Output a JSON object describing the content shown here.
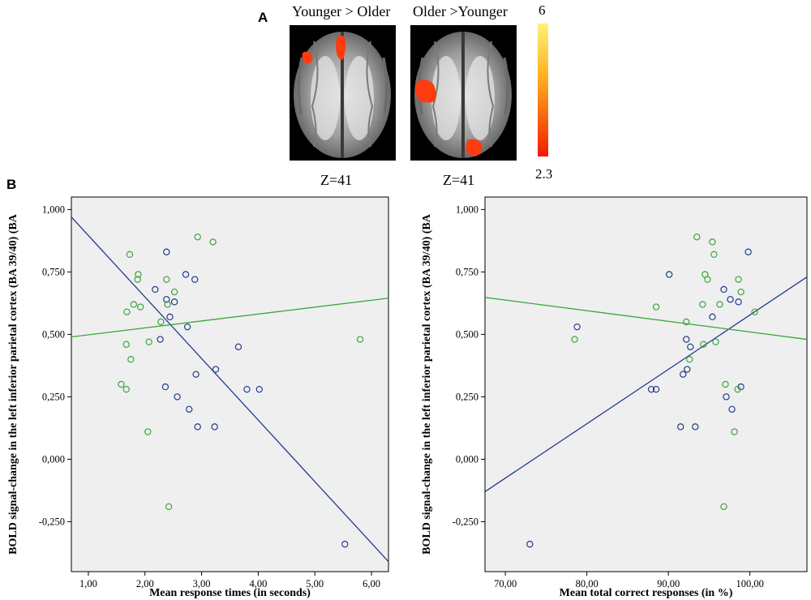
{
  "panel_a_label": "A",
  "panel_b_label": "B",
  "brain_images": [
    {
      "title": "Younger > Older",
      "z_label": "Z=41"
    },
    {
      "title": "Older >Younger",
      "z_label": "Z=41"
    }
  ],
  "colorbar": {
    "max_label": "6",
    "min_label": "2.3",
    "top_color": "#fff176",
    "bottom_color": "#f21c00"
  },
  "colors": {
    "blue_group": "#1f3b8c",
    "green_group": "#3aa63a",
    "plot_bg": "#efefef"
  },
  "chart_data": [
    {
      "type": "scatter",
      "xlabel": "Mean response times (in seconds)",
      "ylabel": "BOLD signal-change in the left inferior parietal cortex (BA 39/40)",
      "xlim": [
        0.7,
        6.3
      ],
      "ylim": [
        -0.45,
        1.05
      ],
      "x_ticks": [
        1,
        2,
        3,
        4,
        5,
        6
      ],
      "x_tick_labels": [
        "1,00",
        "2,00",
        "3,00",
        "4,00",
        "5,00",
        "6,00"
      ],
      "y_ticks": [
        -0.25,
        0,
        0.25,
        0.5,
        0.75,
        1
      ],
      "y_tick_labels": [
        "-0,250",
        "0,000",
        "0,250",
        "0,500",
        "0,750",
        "1,000"
      ],
      "series": [
        {
          "name": "blue",
          "points": [
            [
              2.38,
              0.83
            ],
            [
              2.72,
              0.74
            ],
            [
              2.88,
              0.72
            ],
            [
              2.18,
              0.68
            ],
            [
              2.38,
              0.64
            ],
            [
              2.52,
              0.63
            ],
            [
              2.44,
              0.57
            ],
            [
              2.75,
              0.53
            ],
            [
              2.27,
              0.48
            ],
            [
              3.65,
              0.45
            ],
            [
              3.25,
              0.36
            ],
            [
              2.9,
              0.34
            ],
            [
              2.36,
              0.29
            ],
            [
              2.57,
              0.25
            ],
            [
              2.78,
              0.2
            ],
            [
              3.8,
              0.28
            ],
            [
              4.02,
              0.28
            ],
            [
              2.93,
              0.13
            ],
            [
              3.23,
              0.13
            ],
            [
              5.53,
              -0.34
            ]
          ],
          "fit": [
            [
              0.7,
              0.97
            ],
            [
              6.3,
              -0.41
            ]
          ]
        },
        {
          "name": "green",
          "points": [
            [
              2.93,
              0.89
            ],
            [
              3.2,
              0.87
            ],
            [
              1.73,
              0.82
            ],
            [
              1.88,
              0.74
            ],
            [
              1.87,
              0.72
            ],
            [
              2.38,
              0.72
            ],
            [
              2.52,
              0.67
            ],
            [
              1.8,
              0.62
            ],
            [
              1.92,
              0.61
            ],
            [
              2.4,
              0.62
            ],
            [
              1.68,
              0.59
            ],
            [
              2.28,
              0.55
            ],
            [
              1.67,
              0.46
            ],
            [
              2.07,
              0.47
            ],
            [
              5.8,
              0.48
            ],
            [
              1.75,
              0.4
            ],
            [
              1.58,
              0.3
            ],
            [
              1.67,
              0.28
            ],
            [
              2.05,
              0.11
            ],
            [
              2.42,
              -0.19
            ]
          ],
          "fit": [
            [
              0.7,
              0.49
            ],
            [
              6.3,
              0.645
            ]
          ]
        }
      ]
    },
    {
      "type": "scatter",
      "xlabel": "Mean total correct responses (in %)",
      "ylabel": "BOLD signal-change in the left inferior parietal cortex (BA 39/40)",
      "xlim": [
        67.5,
        107
      ],
      "ylim": [
        -0.45,
        1.05
      ],
      "x_ticks": [
        70,
        80,
        90,
        100
      ],
      "x_tick_labels": [
        "70,00",
        "80,00",
        "90,00",
        "100,00"
      ],
      "y_ticks": [
        -0.25,
        0,
        0.25,
        0.5,
        0.75,
        1
      ],
      "y_tick_labels": [
        "-0,250",
        "0,000",
        "0,250",
        "0,500",
        "0,750",
        "1,000"
      ],
      "series": [
        {
          "name": "blue",
          "points": [
            [
              99.8,
              0.83
            ],
            [
              90.1,
              0.74
            ],
            [
              96.8,
              0.68
            ],
            [
              97.6,
              0.64
            ],
            [
              98.6,
              0.63
            ],
            [
              95.4,
              0.57
            ],
            [
              78.8,
              0.53
            ],
            [
              92.2,
              0.48
            ],
            [
              92.7,
              0.45
            ],
            [
              92.3,
              0.36
            ],
            [
              91.8,
              0.34
            ],
            [
              98.9,
              0.29
            ],
            [
              87.9,
              0.28
            ],
            [
              88.5,
              0.28
            ],
            [
              97.1,
              0.25
            ],
            [
              97.8,
              0.2
            ],
            [
              91.5,
              0.13
            ],
            [
              93.3,
              0.13
            ],
            [
              73.0,
              -0.34
            ]
          ],
          "fit": [
            [
              67.5,
              -0.13
            ],
            [
              107,
              0.73
            ]
          ]
        },
        {
          "name": "green",
          "points": [
            [
              93.5,
              0.89
            ],
            [
              95.4,
              0.87
            ],
            [
              95.6,
              0.82
            ],
            [
              94.5,
              0.74
            ],
            [
              98.6,
              0.72
            ],
            [
              94.8,
              0.72
            ],
            [
              98.9,
              0.67
            ],
            [
              96.3,
              0.62
            ],
            [
              94.2,
              0.62
            ],
            [
              88.5,
              0.61
            ],
            [
              100.6,
              0.59
            ],
            [
              92.2,
              0.55
            ],
            [
              78.5,
              0.48
            ],
            [
              95.8,
              0.47
            ],
            [
              94.3,
              0.46
            ],
            [
              92.6,
              0.4
            ],
            [
              97.0,
              0.3
            ],
            [
              98.5,
              0.28
            ],
            [
              98.1,
              0.11
            ],
            [
              96.8,
              -0.19
            ]
          ],
          "fit": [
            [
              67.5,
              0.648
            ],
            [
              107,
              0.48
            ]
          ]
        }
      ]
    }
  ]
}
